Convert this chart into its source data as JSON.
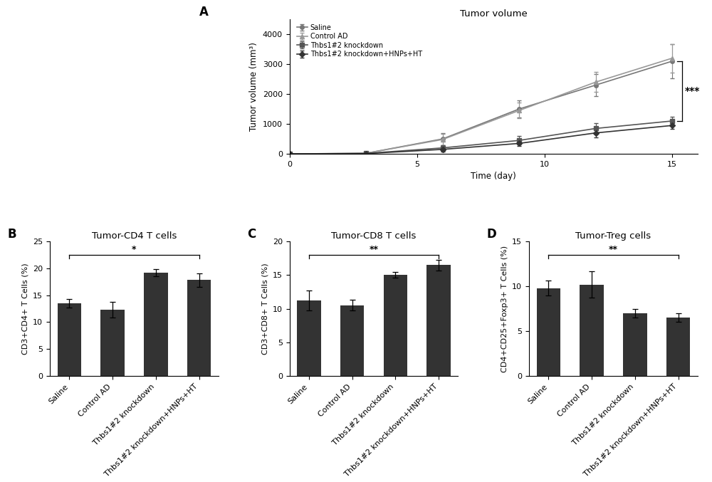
{
  "panel_A": {
    "title": "Tumor volume",
    "xlabel": "Time (day)",
    "ylabel": "Tumor volume (mm³)",
    "xlim": [
      0,
      16
    ],
    "ylim": [
      0,
      4500
    ],
    "yticks": [
      0,
      1000,
      2000,
      3000,
      4000
    ],
    "xticks": [
      0,
      5,
      10,
      15
    ],
    "days": [
      0,
      3,
      6,
      9,
      12,
      15
    ],
    "lines": {
      "Saline": {
        "y": [
          0,
          20,
          500,
          1500,
          2300,
          3100
        ],
        "err": [
          0,
          10,
          200,
          280,
          380,
          580
        ],
        "marker": "o",
        "ls": "-",
        "lw": 1.2,
        "color": "#777777"
      },
      "Control AD": {
        "y": [
          0,
          20,
          480,
          1450,
          2400,
          3200
        ],
        "err": [
          0,
          10,
          180,
          260,
          330,
          480
        ],
        "marker": "^",
        "ls": "-",
        "lw": 1.2,
        "color": "#999999"
      },
      "Thbs1#2 knockdown": {
        "y": [
          0,
          15,
          200,
          450,
          850,
          1100
        ],
        "err": [
          0,
          10,
          100,
          140,
          180,
          140
        ],
        "marker": "s",
        "ls": "-",
        "lw": 1.2,
        "color": "#555555"
      },
      "Thbs1#2 knockdown+HNPs+HT": {
        "y": [
          0,
          10,
          150,
          350,
          700,
          950
        ],
        "err": [
          0,
          8,
          80,
          90,
          140,
          120
        ],
        "marker": "D",
        "ls": "-",
        "lw": 1.2,
        "color": "#333333"
      }
    },
    "sig_text": "***",
    "sig_x": 15.4,
    "sig_y_high": 3100,
    "sig_y_low": 1100
  },
  "panel_B": {
    "title": "Tumor-CD4 T cells",
    "ylabel": "CD3+CD4+ T Cells (%)",
    "ylim": [
      0,
      25
    ],
    "yticks": [
      0,
      5,
      10,
      15,
      20,
      25
    ],
    "categories": [
      "Saline",
      "Control AD",
      "Thbs1#2 knockdown",
      "Thbs1#2 knockdown+HNPs+HT"
    ],
    "values": [
      13.5,
      12.3,
      19.2,
      17.8
    ],
    "errors": [
      0.8,
      1.5,
      0.7,
      1.2
    ],
    "bar_color": "#333333",
    "sig_text": "*"
  },
  "panel_C": {
    "title": "Tumor-CD8 T cells",
    "ylabel": "CD3+CD8+ T Cells (%)",
    "ylim": [
      0,
      20
    ],
    "yticks": [
      0,
      5,
      10,
      15,
      20
    ],
    "categories": [
      "Saline",
      "Control AD",
      "Thbs1#2 knockdown",
      "Thbs1#2 knockdown+HNPs+HT"
    ],
    "values": [
      11.2,
      10.5,
      15.0,
      16.5
    ],
    "errors": [
      1.5,
      0.8,
      0.4,
      0.8
    ],
    "bar_color": "#333333",
    "sig_text": "**"
  },
  "panel_D": {
    "title": "Tumor-Treg cells",
    "ylabel": "CD4+CD25+Foxp3+ T Cells (%)",
    "ylim": [
      0,
      15
    ],
    "yticks": [
      0,
      5,
      10,
      15
    ],
    "categories": [
      "Saline",
      "Control AD",
      "Thbs1#2 knockdown",
      "Thbs1#2 knockdown+HNPs+HT"
    ],
    "values": [
      9.8,
      10.2,
      7.0,
      6.5
    ],
    "errors": [
      0.8,
      1.5,
      0.5,
      0.5
    ],
    "bar_color": "#333333",
    "sig_text": "**"
  },
  "bg_color": "#ffffff",
  "bar_width": 0.55,
  "label_fontsize": 8.5,
  "tick_fontsize": 8,
  "title_fontsize": 9.5,
  "panel_label_fontsize": 12
}
